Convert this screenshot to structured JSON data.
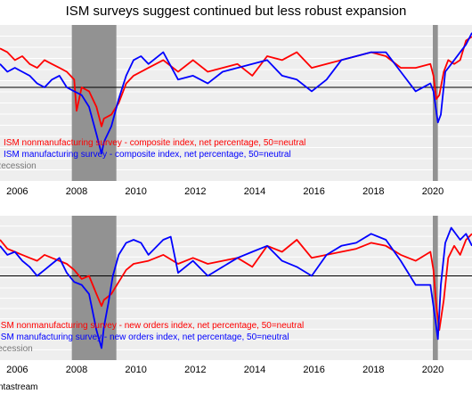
{
  "title": "ISM surveys suggest continued but less robust expansion",
  "source": "ntastream",
  "colors": {
    "nonmanufacturing": "#ff0000",
    "manufacturing": "#0000ff",
    "recession": "#8c8c8c",
    "background": "#eeeeee",
    "neutral_line": "#000000"
  },
  "chart_data": [
    {
      "type": "line",
      "x_tick_labels": [
        "2006",
        "2008",
        "2010",
        "2012",
        "2014",
        "2016",
        "2018",
        "2020"
      ],
      "xlim": [
        2005.5,
        2021.4
      ],
      "ylim": [
        26,
        66
      ],
      "neutral": 50,
      "grid": true,
      "recessions": [
        [
          2007.92,
          2009.42
        ],
        [
          2020.08,
          2020.25
        ]
      ],
      "legend_position": "bottom-left",
      "legend": [
        "ISM nonmanufacturing survey - composite index, net percentage, 50=neutral",
        "ISM manufacturing survey - composite index, net percentage, 50=neutral",
        "Recession"
      ],
      "series": [
        {
          "name": "ISM nonmanufacturing survey - composite index, net percentage, 50=neutral",
          "x": [
            2005.5,
            2005.75,
            2006.0,
            2006.25,
            2006.5,
            2006.75,
            2007.0,
            2007.25,
            2007.5,
            2007.75,
            2008.0,
            2008.08,
            2008.25,
            2008.5,
            2008.75,
            2008.92,
            2009.0,
            2009.25,
            2009.5,
            2009.75,
            2010.0,
            2010.5,
            2011.0,
            2011.5,
            2012.0,
            2012.5,
            2013.0,
            2013.5,
            2014.0,
            2014.5,
            2015.0,
            2015.5,
            2016.0,
            2016.5,
            2017.0,
            2017.5,
            2018.0,
            2018.5,
            2019.0,
            2019.5,
            2020.0,
            2020.1,
            2020.2,
            2020.3,
            2020.45,
            2020.6,
            2020.8,
            2021.0,
            2021.2,
            2021.4
          ],
          "values": [
            60,
            59,
            57,
            58,
            56,
            55,
            57,
            56,
            55,
            54,
            52,
            44,
            50,
            49,
            45,
            40,
            42,
            43,
            46,
            51,
            53,
            55,
            57,
            54,
            57,
            54,
            55,
            56,
            53,
            58,
            57,
            59,
            55,
            56,
            57,
            58,
            59,
            58,
            55,
            55,
            56,
            53,
            47,
            48,
            54,
            57,
            56,
            57,
            62,
            63
          ]
        },
        {
          "name": "ISM manufacturing survey - composite index, net percentage, 50=neutral",
          "x": [
            2005.5,
            2005.75,
            2006.0,
            2006.25,
            2006.5,
            2006.75,
            2007.0,
            2007.25,
            2007.5,
            2007.75,
            2008.0,
            2008.25,
            2008.5,
            2008.75,
            2008.92,
            2009.0,
            2009.25,
            2009.5,
            2009.75,
            2010.0,
            2010.25,
            2010.5,
            2011.0,
            2011.5,
            2012.0,
            2012.5,
            2013.0,
            2013.5,
            2014.0,
            2014.5,
            2015.0,
            2015.5,
            2016.0,
            2016.5,
            2017.0,
            2017.5,
            2018.0,
            2018.5,
            2019.0,
            2019.5,
            2020.0,
            2020.1,
            2020.25,
            2020.35,
            2020.5,
            2020.7,
            2021.0,
            2021.2,
            2021.4
          ],
          "values": [
            56,
            54,
            55,
            54,
            53,
            51,
            50,
            52,
            53,
            50,
            49,
            48,
            45,
            38,
            33,
            36,
            40,
            47,
            53,
            57,
            58,
            56,
            59,
            52,
            53,
            51,
            54,
            55,
            56,
            57,
            53,
            52,
            49,
            52,
            57,
            58,
            59,
            59,
            54,
            49,
            51,
            49,
            41,
            43,
            54,
            56,
            59,
            61,
            64
          ]
        }
      ]
    },
    {
      "type": "line",
      "x_tick_labels": [
        "2006",
        "2008",
        "2010",
        "2012",
        "2014",
        "2016",
        "2018",
        "2020"
      ],
      "xlim": [
        2005.5,
        2021.4
      ],
      "ylim": [
        22,
        70
      ],
      "neutral": 50,
      "grid": true,
      "recessions": [
        [
          2007.92,
          2009.42
        ],
        [
          2020.08,
          2020.25
        ]
      ],
      "legend_position": "bottom-left",
      "legend": [
        "ISM nonmanufacturing survey - new orders index, net percentage, 50=neutral",
        "ISM manufacturing survey - new orders index, net percentage, 50=neutral",
        "Recession"
      ],
      "series": [
        {
          "name": "ISM nonmanufacturing survey - new orders index, net percentage, 50=neutral",
          "x": [
            2005.5,
            2005.75,
            2006.0,
            2006.25,
            2006.5,
            2006.75,
            2007.0,
            2007.25,
            2007.5,
            2007.75,
            2008.0,
            2008.25,
            2008.5,
            2008.75,
            2008.92,
            2009.0,
            2009.25,
            2009.5,
            2009.75,
            2010.0,
            2010.5,
            2011.0,
            2011.5,
            2012.0,
            2012.5,
            2013.0,
            2013.5,
            2014.0,
            2014.5,
            2015.0,
            2015.5,
            2016.0,
            2016.5,
            2017.0,
            2017.5,
            2018.0,
            2018.5,
            2019.0,
            2019.5,
            2020.0,
            2020.1,
            2020.2,
            2020.3,
            2020.45,
            2020.6,
            2020.8,
            2021.0,
            2021.2,
            2021.4
          ],
          "values": [
            62,
            59,
            58,
            57,
            56,
            55,
            57,
            56,
            55,
            54,
            52,
            49,
            50,
            44,
            40,
            42,
            44,
            48,
            52,
            54,
            55,
            57,
            54,
            56,
            54,
            55,
            56,
            53,
            60,
            58,
            62,
            56,
            57,
            58,
            59,
            61,
            60,
            57,
            55,
            58,
            52,
            40,
            32,
            42,
            56,
            60,
            57,
            62,
            64
          ]
        },
        {
          "name": "ISM manufacturing survey - new orders index, net percentage, 50=neutral",
          "x": [
            2005.5,
            2005.75,
            2006.0,
            2006.25,
            2006.5,
            2006.75,
            2007.0,
            2007.25,
            2007.5,
            2007.75,
            2008.0,
            2008.25,
            2008.5,
            2008.75,
            2008.92,
            2009.0,
            2009.15,
            2009.3,
            2009.5,
            2009.75,
            2010.0,
            2010.25,
            2010.5,
            2011.0,
            2011.25,
            2011.5,
            2012.0,
            2012.5,
            2013.0,
            2013.5,
            2014.0,
            2014.5,
            2015.0,
            2015.5,
            2016.0,
            2016.5,
            2017.0,
            2017.5,
            2018.0,
            2018.5,
            2019.0,
            2019.5,
            2020.0,
            2020.1,
            2020.25,
            2020.35,
            2020.5,
            2020.7,
            2021.0,
            2021.2,
            2021.4
          ],
          "values": [
            60,
            57,
            58,
            55,
            53,
            50,
            52,
            54,
            56,
            51,
            48,
            47,
            44,
            32,
            26,
            33,
            41,
            50,
            57,
            61,
            62,
            61,
            57,
            62,
            63,
            51,
            55,
            50,
            53,
            56,
            58,
            60,
            55,
            53,
            50,
            57,
            60,
            61,
            64,
            62,
            55,
            47,
            47,
            40,
            29,
            47,
            61,
            66,
            62,
            64,
            60
          ]
        }
      ]
    }
  ]
}
